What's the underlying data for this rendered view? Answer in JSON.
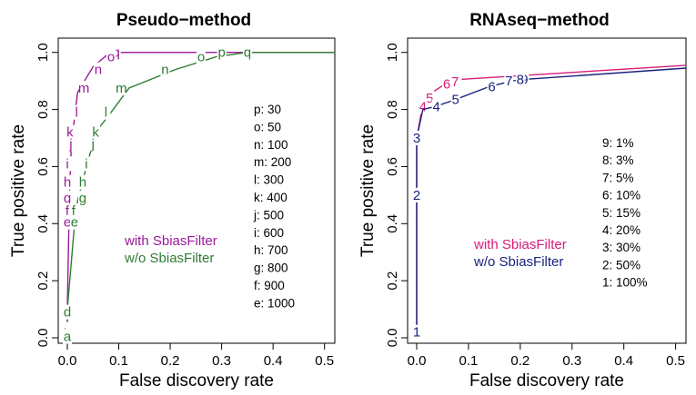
{
  "chart_data": [
    {
      "type": "line",
      "title": "Pseudo−method",
      "xlabel": "False discovery rate",
      "ylabel": "True positive rate",
      "xlim": [
        0,
        0.52
      ],
      "ylim": [
        0,
        1.05
      ],
      "xticks": [
        0,
        0.1,
        0.2,
        0.3,
        0.4,
        0.5
      ],
      "xtick_labels": [
        "0.0",
        "0.1",
        "0.2",
        "0.3",
        "0.4",
        "0.5"
      ],
      "yticks": [
        0,
        0.2,
        0.4,
        0.6,
        0.8,
        1.0
      ],
      "ytick_labels": [
        "0.0",
        "0.2",
        "0.4",
        "0.6",
        "0.8",
        "1.0"
      ],
      "grid": false,
      "legend_position": "center-left",
      "series": [
        {
          "name": "with SbiasFilter",
          "color": "#9b1a9b",
          "curve": [
            [
              0,
              0
            ],
            [
              0.0,
              0.01
            ],
            [
              0,
              0.1
            ],
            [
              0.004,
              0.5
            ],
            [
              0.008,
              0.68
            ],
            [
              0.02,
              0.86
            ],
            [
              0.05,
              0.95
            ],
            [
              0.08,
              0.995
            ],
            [
              0.11,
              1.0
            ],
            [
              0.52,
              1.0
            ]
          ],
          "points": [
            {
              "label": "q",
              "x": 0.095,
              "y": 1.0
            },
            {
              "label": "p",
              "x": 0.085,
              "y": 1.0
            },
            {
              "label": "o",
              "x": 0.085,
              "y": 0.985
            },
            {
              "label": "n",
              "x": 0.06,
              "y": 0.94
            },
            {
              "label": "m",
              "x": 0.032,
              "y": 0.875
            },
            {
              "label": "l",
              "x": 0.018,
              "y": 0.79
            },
            {
              "label": "k",
              "x": 0.005,
              "y": 0.72
            },
            {
              "label": "j",
              "x": 0.007,
              "y": 0.68
            },
            {
              "label": "i",
              "x": 0.0,
              "y": 0.61
            },
            {
              "label": "h",
              "x": 0.0,
              "y": 0.545
            },
            {
              "label": "g",
              "x": 0.0,
              "y": 0.49
            },
            {
              "label": "f",
              "x": 0.0,
              "y": 0.445
            },
            {
              "label": "e",
              "x": 0.0,
              "y": 0.405
            },
            {
              "label": "d",
              "x": 0.0,
              "y": 0.09
            },
            {
              "label": "c",
              "x": 0.0,
              "y": 0.03
            },
            {
              "label": "b",
              "x": 0.0,
              "y": 0.015
            },
            {
              "label": "a",
              "x": 0.0,
              "y": 0.005
            }
          ]
        },
        {
          "name": "w/o SbiasFilter",
          "color": "#2e7d32",
          "curve": [
            [
              0,
              0
            ],
            [
              0,
              0.1
            ],
            [
              0.015,
              0.42
            ],
            [
              0.02,
              0.48
            ],
            [
              0.03,
              0.55
            ],
            [
              0.04,
              0.62
            ],
            [
              0.05,
              0.68
            ],
            [
              0.055,
              0.72
            ],
            [
              0.085,
              0.79
            ],
            [
              0.12,
              0.875
            ],
            [
              0.21,
              0.94
            ],
            [
              0.29,
              0.985
            ],
            [
              0.35,
              1.0
            ],
            [
              0.52,
              1.0
            ]
          ],
          "points": [
            {
              "label": "q",
              "x": 0.35,
              "y": 1.0
            },
            {
              "label": "p",
              "x": 0.3,
              "y": 1.0
            },
            {
              "label": "o",
              "x": 0.26,
              "y": 0.985
            },
            {
              "label": "n",
              "x": 0.19,
              "y": 0.94
            },
            {
              "label": "m",
              "x": 0.105,
              "y": 0.875
            },
            {
              "label": "l",
              "x": 0.075,
              "y": 0.79
            },
            {
              "label": "k",
              "x": 0.055,
              "y": 0.72
            },
            {
              "label": "j",
              "x": 0.05,
              "y": 0.68
            },
            {
              "label": "i",
              "x": 0.037,
              "y": 0.61
            },
            {
              "label": "h",
              "x": 0.03,
              "y": 0.545
            },
            {
              "label": "g",
              "x": 0.03,
              "y": 0.49
            },
            {
              "label": "f",
              "x": 0.012,
              "y": 0.445
            },
            {
              "label": "e",
              "x": 0.014,
              "y": 0.405
            },
            {
              "label": "d",
              "x": 0.0,
              "y": 0.09
            },
            {
              "label": "c",
              "x": 0.0,
              "y": 0.03
            },
            {
              "label": "b",
              "x": 0.0,
              "y": 0.015
            },
            {
              "label": "a",
              "x": 0.0,
              "y": 0.005
            }
          ]
        }
      ],
      "annotation": [
        "p: 30",
        "o: 50",
        "n: 100",
        "m: 200",
        "l: 300",
        "k: 400",
        "j: 500",
        "i: 600",
        "h: 700",
        "g: 800",
        "f: 900",
        "e: 1000"
      ]
    },
    {
      "type": "line",
      "title": "RNAseq−method",
      "xlabel": "False discovery rate",
      "ylabel": "True positive rate",
      "xlim": [
        0,
        0.52
      ],
      "ylim": [
        0,
        1.05
      ],
      "xticks": [
        0,
        0.1,
        0.2,
        0.3,
        0.4,
        0.5
      ],
      "xtick_labels": [
        "0.0",
        "0.1",
        "0.2",
        "0.3",
        "0.4",
        "0.5"
      ],
      "yticks": [
        0,
        0.2,
        0.4,
        0.6,
        0.8,
        1.0
      ],
      "ytick_labels": [
        "0.0",
        "0.2",
        "0.4",
        "0.6",
        "0.8",
        "1.0"
      ],
      "grid": false,
      "legend_position": "center-right",
      "series": [
        {
          "name": "with SbiasFilter",
          "color": "#d81b7a",
          "curve": [
            [
              0,
              0.0
            ],
            [
              0,
              0.5
            ],
            [
              0,
              0.7
            ],
            [
              0.01,
              0.8
            ],
            [
              0.03,
              0.86
            ],
            [
              0.06,
              0.895
            ],
            [
              0.08,
              0.905
            ],
            [
              0.52,
              0.955
            ]
          ],
          "points": [
            {
              "label": "9",
              "x": 0.078,
              "y": 0.905
            },
            {
              "label": "8",
              "x": 0.076,
              "y": 0.9
            },
            {
              "label": "7",
              "x": 0.074,
              "y": 0.898
            },
            {
              "label": "6",
              "x": 0.058,
              "y": 0.89
            },
            {
              "label": "5",
              "x": 0.025,
              "y": 0.84
            },
            {
              "label": "4",
              "x": 0.012,
              "y": 0.81
            },
            {
              "label": "3",
              "x": 0.0,
              "y": 0.7
            },
            {
              "label": "2",
              "x": 0.0,
              "y": 0.5
            },
            {
              "label": "1",
              "x": 0.0,
              "y": 0.02
            }
          ]
        },
        {
          "name": "w/o SbiasFilter",
          "color": "#1a237e",
          "curve": [
            [
              0,
              0.0
            ],
            [
              0,
              0.5
            ],
            [
              0,
              0.7
            ],
            [
              0.012,
              0.8
            ],
            [
              0.035,
              0.81
            ],
            [
              0.075,
              0.835
            ],
            [
              0.14,
              0.88
            ],
            [
              0.185,
              0.9
            ],
            [
              0.205,
              0.905
            ],
            [
              0.52,
              0.945
            ]
          ],
          "points": [
            {
              "label": "9",
              "x": 0.208,
              "y": 0.905
            },
            {
              "label": "8",
              "x": 0.2,
              "y": 0.905
            },
            {
              "label": "7",
              "x": 0.178,
              "y": 0.9
            },
            {
              "label": "6",
              "x": 0.145,
              "y": 0.88
            },
            {
              "label": "5",
              "x": 0.075,
              "y": 0.835
            },
            {
              "label": "4",
              "x": 0.038,
              "y": 0.81
            },
            {
              "label": "3",
              "x": 0.0,
              "y": 0.7
            },
            {
              "label": "2",
              "x": 0.0,
              "y": 0.5
            },
            {
              "label": "1",
              "x": 0.0,
              "y": 0.02
            }
          ]
        }
      ],
      "annotation": [
        "9: 1%",
        "8: 3%",
        "7: 5%",
        "6: 10%",
        "5: 15%",
        "4: 20%",
        "3: 30%",
        "2: 50%",
        "1: 100%"
      ]
    }
  ]
}
